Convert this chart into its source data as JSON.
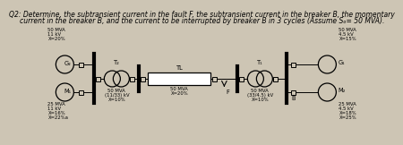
{
  "title_line1": "Q2: Determine, the subtransient current in the fault F, the subtransient current in the breaker B, the momentary",
  "title_line2": "current in the breaker B, and the current to be interrupted by breaker B in 3 cycles (Assume Sₒ= 50 MVA).",
  "bg_color": "#cdc5b4",
  "line_color": "#000000",
  "left_top_label": [
    "50 MVA",
    "11 kV",
    "X=20%"
  ],
  "left_bottom_label": [
    "25 MVA",
    "11 kV",
    "X=16%",
    "X=22%a"
  ],
  "G2_label": "G₂",
  "M1_label": "M₁",
  "T2_label": "T₂",
  "T2_sub": [
    "50 MVA",
    "(11/33) kV",
    "X=10%"
  ],
  "TL_label": "TL",
  "TL_sub": [
    "50 MVA",
    "X=20%"
  ],
  "T1_label": "T₁",
  "T1_sub": [
    "50 MVA",
    "(33/4.5) kV",
    "X=10%"
  ],
  "right_top_label": [
    "50 MVA",
    "4.5 kV",
    "X=15%"
  ],
  "right_bottom_label": [
    "25 MVA",
    "4.5 kV",
    "X=18%",
    "X=25%"
  ],
  "G1_label": "G₁",
  "M2_label": "M₂",
  "F_label": "F",
  "B_label": "B",
  "title_fontsize": 5.5,
  "label_fontsize": 4.8,
  "small_fontsize": 3.8
}
